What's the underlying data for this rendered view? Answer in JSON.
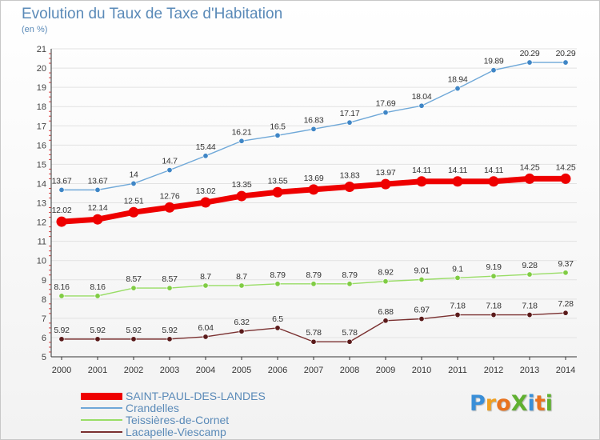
{
  "header": {
    "title": "Evolution du Taux de Taxe d'Habitation",
    "unit": "(en %)"
  },
  "logo": {
    "text": "ProXiti",
    "letter_colors": [
      "#3a8fd8",
      "#f0a020",
      "#e8731f",
      "#60b030",
      "#3a8fd8",
      "#e8731f",
      "#60b030"
    ]
  },
  "chart_data": {
    "type": "line",
    "title": "Evolution du Taux de Taxe d'Habitation",
    "ylabel": "(en %)",
    "xlabel": "",
    "x": [
      "2000",
      "2001",
      "2002",
      "2003",
      "2004",
      "2005",
      "2006",
      "2007",
      "2008",
      "2009",
      "2010",
      "2011",
      "2012",
      "2013",
      "2014"
    ],
    "ylim": [
      5,
      21
    ],
    "yticks": [
      "5",
      "6",
      "7",
      "8",
      "9",
      "10",
      "11",
      "12",
      "13",
      "14",
      "15",
      "16",
      "17",
      "18",
      "19",
      "20",
      "21"
    ],
    "grid": "horizontal",
    "legend_position": "bottom-left",
    "series": [
      {
        "name": "SAINT-PAUL-DES-LANDES",
        "color": "#ee0000",
        "emphasis": "thick",
        "values": [
          12.02,
          12.14,
          12.51,
          12.76,
          13.02,
          13.35,
          13.55,
          13.69,
          13.83,
          13.97,
          14.11,
          14.11,
          14.11,
          14.25,
          14.25
        ],
        "labels": [
          "12.02",
          "12.14",
          "12.51",
          "12.76",
          "13.02",
          "13.35",
          "13.55",
          "13.69",
          "13.83",
          "13.97",
          "14.11",
          "14.11",
          "14.11",
          "14.25",
          "14.25"
        ]
      },
      {
        "name": "Crandelles",
        "color": "#6fa8d8",
        "marker_color": "#3f86c6",
        "values": [
          13.67,
          13.67,
          14,
          14.7,
          15.44,
          16.21,
          16.5,
          16.83,
          17.17,
          17.69,
          18.04,
          18.94,
          19.89,
          20.29,
          20.29
        ],
        "labels": [
          "13.67",
          "13.67",
          "14",
          "14.7",
          "15.44",
          "16.21",
          "16.5",
          "16.83",
          "17.17",
          "17.69",
          "18.04",
          "18.94",
          "19.89",
          "20.29",
          "20.29"
        ]
      },
      {
        "name": "Teissières-de-Cornet",
        "color": "#99dd66",
        "marker_color": "#80cc44",
        "values": [
          8.16,
          8.16,
          8.57,
          8.57,
          8.7,
          8.7,
          8.79,
          8.79,
          8.79,
          8.92,
          9.01,
          9.1,
          9.19,
          9.28,
          9.37
        ],
        "labels": [
          "8.16",
          "8.16",
          "8.57",
          "8.57",
          "8.7",
          "8.7",
          "8.79",
          "8.79",
          "8.79",
          "8.92",
          "9.01",
          "9.1",
          "9.19",
          "9.28",
          "9.37"
        ]
      },
      {
        "name": "Lacapelle-Viescamp",
        "color": "#7a3030",
        "marker_color": "#5a1a1a",
        "values": [
          5.92,
          5.92,
          5.92,
          5.92,
          6.04,
          6.32,
          6.5,
          5.78,
          5.78,
          6.88,
          6.97,
          7.18,
          7.18,
          7.18,
          7.28
        ],
        "labels": [
          "5.92",
          "5.92",
          "5.92",
          "5.92",
          "6.04",
          "6.32",
          "6.5",
          "5.78",
          "5.78",
          "6.88",
          "6.97",
          "7.18",
          "7.18",
          "7.18",
          "7.28"
        ]
      }
    ]
  }
}
